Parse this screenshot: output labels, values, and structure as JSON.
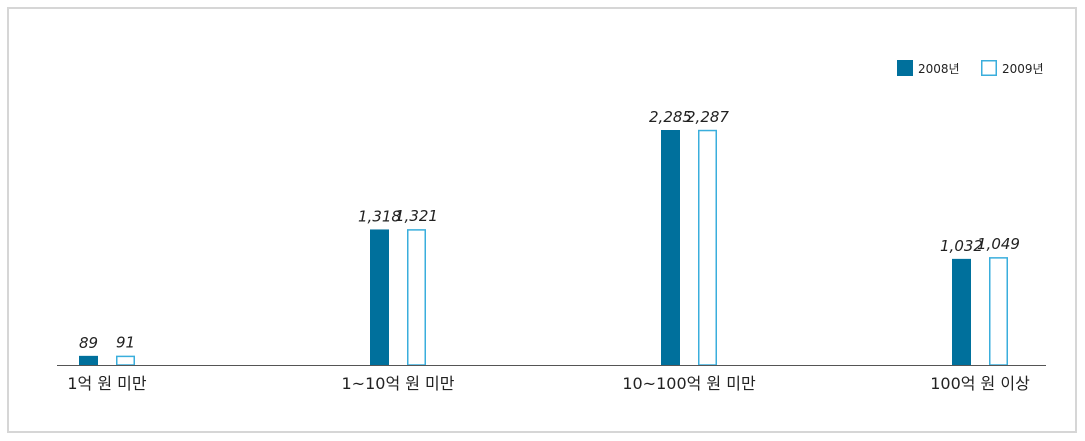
{
  "chart_data": {
    "type": "bar",
    "categories": [
      "1억 원 미만",
      "1~10억 원 미만",
      "10~100억 원 미만",
      "100억 원 이상"
    ],
    "series": [
      {
        "name": "2008년",
        "values": [
          89,
          1318,
          2285,
          1032
        ],
        "labels": [
          "89",
          "1,318",
          "2,285",
          "1,032"
        ],
        "color": "#00709c",
        "style": "filled"
      },
      {
        "name": "2009년",
        "values": [
          91,
          1321,
          2287,
          1049
        ],
        "labels": [
          "91",
          "1,321",
          "2,287",
          "1,049"
        ],
        "color": "#3aaedc",
        "style": "outline"
      }
    ],
    "ylim": [
      0,
      2500
    ],
    "grid": false,
    "legend": "top-right",
    "title": "",
    "xlabel": "",
    "ylabel": ""
  }
}
